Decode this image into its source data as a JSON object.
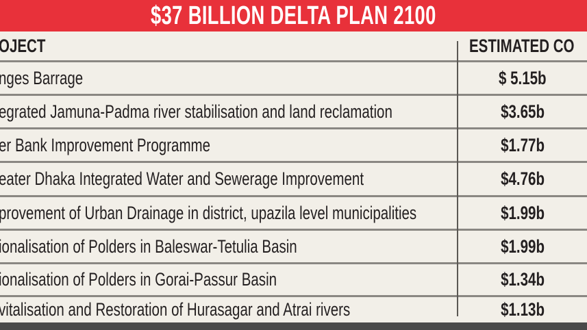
{
  "title": "$37 BILLION DELTA PLAN 2100",
  "colors": {
    "title_bg": "#e8313a",
    "table_bg": "#f2efe8",
    "bottom_bar": "#4a4a4a"
  },
  "chart_data": {
    "type": "table",
    "title": "$37 BILLION DELTA PLAN 2100",
    "columns": [
      "OJECT",
      "ESTIMATED CO"
    ],
    "rows": [
      [
        "nges Barrage",
        "$ 5.15b"
      ],
      [
        "egrated Jamuna-Padma river stabilisation and land reclamation",
        "$3.65b"
      ],
      [
        "er Bank Improvement Programme",
        "$1.77b"
      ],
      [
        "eater Dhaka Integrated Water and Sewerage Improvement",
        "$4.76b"
      ],
      [
        "provement of Urban Drainage in district, upazila level municipalities",
        "$1.99b"
      ],
      [
        "ionalisation of Polders in Baleswar-Tetulia Basin",
        "$1.99b"
      ],
      [
        "ionalisation of Polders in Gorai-Passur Basin",
        "$1.34b"
      ],
      [
        "vitalisation and Restoration of Hurasagar and Atrai rivers",
        "$1.13b"
      ]
    ]
  }
}
